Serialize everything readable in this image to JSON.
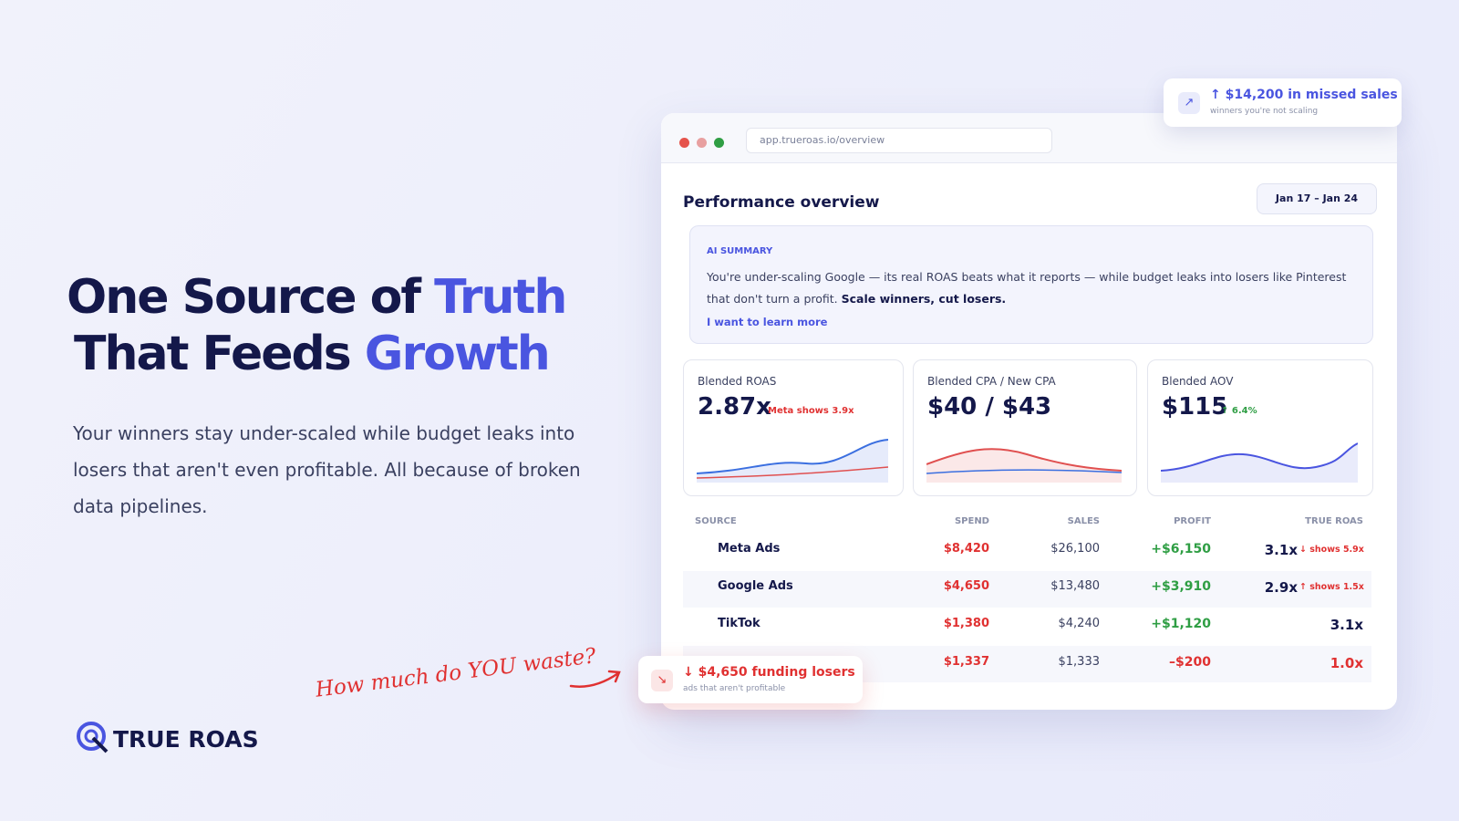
{
  "hero": {
    "title": {
      "line1": "One Source of ",
      "line1_accent": "Truth",
      "line2": "That Feeds ",
      "line2_accent": "Growth"
    },
    "body": "Your winners stay under-scaled while budget leaks into losers that aren't even profitable. All because of broken data pipelines.",
    "annotation": "How much do YOU waste?",
    "logo": "TRUE ROAS"
  },
  "window": {
    "url": "app.trueroas.io/overview",
    "heading": "Performance overview",
    "date_range": "Jan 17 – Jan 24",
    "ai_summary": {
      "label": "AI SUMMARY",
      "text": "You're under-scaling Google — its real ROAS beats what it reports — while budget leaks into losers like Pinterest that don't turn a profit. ",
      "emphasis": "Scale winners, cut losers.",
      "link": "I want to learn more"
    },
    "cards": [
      {
        "label": "Blended ROAS",
        "value": "2.87x",
        "note": "Meta shows 3.9x"
      },
      {
        "label": "Blended CPA / New CPA",
        "value": "$40 / $43"
      },
      {
        "label": "Blended AOV",
        "value": "$115",
        "note": "↑ 6.4%"
      }
    ],
    "table": {
      "headers": [
        "SOURCE",
        "SPEND",
        "SALES",
        "PROFIT",
        "TRUE ROAS"
      ],
      "rows": [
        {
          "source": "Meta Ads",
          "spend": "$8,420",
          "sales": "$26,100",
          "profit": "+$6,150",
          "roas": "3.1x",
          "roas_note": "↓ shows 5.9x"
        },
        {
          "source": "Google Ads",
          "spend": "$4,650",
          "sales": "$13,480",
          "profit": "+$3,910",
          "roas": "2.9x",
          "roas_note": "↑ shows 1.5x"
        },
        {
          "source": "TikTok",
          "spend": "$1,380",
          "sales": "$4,240",
          "profit": "+$1,120",
          "roas": "3.1x"
        },
        {
          "spend": "$1,337",
          "sales": "$1,333",
          "profit": "–$200",
          "roas": "1.0x"
        }
      ]
    }
  },
  "callouts": [
    {
      "title": "↑ $14,200 in missed sales",
      "subtitle": "winners you're not scaling"
    },
    {
      "title": "↓ $4,650 funding losers",
      "subtitle": "ads that aren't profitable"
    }
  ]
}
